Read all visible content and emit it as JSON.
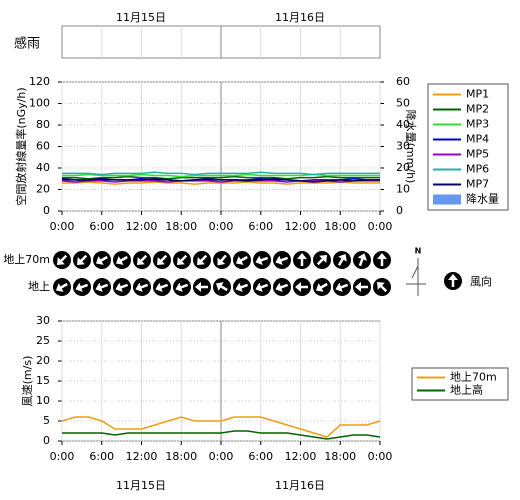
{
  "dates": [
    "11月15日",
    "11月16日"
  ],
  "rain_sense": {
    "label": "感雨"
  },
  "wind_direction": {
    "rows": [
      {
        "name": "地上70m",
        "values": [
          225,
          225,
          240,
          240,
          225,
          225,
          225,
          225,
          220,
          240,
          250,
          250,
          0,
          45,
          30,
          20,
          0
        ]
      },
      {
        "name": "地上",
        "values": [
          240,
          250,
          250,
          250,
          250,
          250,
          250,
          270,
          300,
          250,
          250,
          250,
          270,
          240,
          250,
          270,
          315
        ]
      }
    ],
    "north": "N",
    "legend": "風向"
  },
  "chart_data": [
    {
      "type": "line",
      "ylabel": "空間放射線量率(nGy/h)",
      "y2label": "降水量(mm/h)",
      "x": [
        0,
        2,
        4,
        6,
        8,
        10,
        12,
        14,
        16,
        18,
        20,
        22,
        24,
        26,
        28,
        30,
        32,
        34,
        36,
        38,
        40,
        42,
        44,
        46,
        48
      ],
      "xlim": [
        0,
        48
      ],
      "xticks": [
        {
          "value": 0,
          "label": "0:00"
        },
        {
          "value": 6,
          "label": "6:00"
        },
        {
          "value": 12,
          "label": "12:00"
        },
        {
          "value": 18,
          "label": "18:00"
        },
        {
          "value": 24,
          "label": "0:00"
        },
        {
          "value": 30,
          "label": "6:00"
        },
        {
          "value": 36,
          "label": "12:00"
        },
        {
          "value": 42,
          "label": "18:00"
        },
        {
          "value": 48,
          "label": "0:00"
        }
      ],
      "ylim": [
        0,
        120
      ],
      "yticks": [
        0,
        20,
        40,
        60,
        80,
        100,
        120
      ],
      "y2lim": [
        0,
        60
      ],
      "y2ticks": [
        0,
        10,
        20,
        30,
        40,
        50,
        60
      ],
      "grid": true,
      "series": [
        {
          "name": "MP1",
          "color": "#f39c12",
          "values": [
            26,
            26,
            27,
            26,
            25,
            26,
            26,
            27,
            26,
            26,
            25,
            26,
            26,
            26,
            27,
            26,
            26,
            25,
            26,
            26,
            26,
            27,
            26,
            26,
            26
          ]
        },
        {
          "name": "MP2",
          "color": "#006400",
          "values": [
            31,
            31,
            30,
            31,
            31,
            32,
            31,
            31,
            30,
            31,
            31,
            31,
            31,
            32,
            31,
            31,
            31,
            30,
            31,
            31,
            32,
            31,
            31,
            31,
            31
          ]
        },
        {
          "name": "MP3",
          "color": "#33dd33",
          "values": [
            33,
            33,
            34,
            33,
            33,
            33,
            34,
            33,
            33,
            32,
            33,
            33,
            33,
            33,
            34,
            33,
            33,
            33,
            33,
            34,
            33,
            33,
            33,
            33,
            33
          ]
        },
        {
          "name": "MP4",
          "color": "#0000cc",
          "values": [
            29,
            29,
            28,
            29,
            29,
            29,
            30,
            29,
            29,
            28,
            29,
            29,
            29,
            29,
            29,
            30,
            29,
            29,
            28,
            29,
            29,
            29,
            30,
            29,
            29
          ]
        },
        {
          "name": "MP5",
          "color": "#9900cc",
          "values": [
            28,
            27,
            28,
            28,
            27,
            28,
            28,
            28,
            27,
            28,
            28,
            28,
            27,
            28,
            28,
            28,
            28,
            27,
            28,
            28,
            28,
            27,
            28,
            28,
            28
          ]
        },
        {
          "name": "MP6",
          "color": "#20b2aa",
          "values": [
            35,
            35,
            35,
            34,
            35,
            35,
            35,
            36,
            35,
            35,
            34,
            35,
            35,
            35,
            35,
            36,
            35,
            35,
            35,
            34,
            35,
            35,
            35,
            35,
            35
          ]
        },
        {
          "name": "MP7",
          "color": "#000066",
          "values": [
            30,
            29,
            29,
            30,
            29,
            29,
            29,
            30,
            29,
            28,
            29,
            30,
            29,
            29,
            28,
            29,
            30,
            29,
            28,
            27,
            28,
            29,
            28,
            29,
            29
          ]
        },
        {
          "name": "降水量",
          "color": "#6699ee",
          "type": "bar",
          "axis": "y2",
          "values": [
            0,
            0,
            0,
            0,
            0,
            0,
            0,
            0,
            0,
            0,
            0,
            0,
            0,
            0,
            0,
            0,
            0,
            0,
            0,
            0,
            0,
            0,
            0,
            0,
            0
          ]
        }
      ]
    },
    {
      "type": "line",
      "ylabel": "風速(m/s)",
      "x": [
        0,
        2,
        4,
        6,
        8,
        10,
        12,
        14,
        16,
        18,
        20,
        22,
        24,
        26,
        28,
        30,
        32,
        34,
        36,
        38,
        40,
        42,
        44,
        46,
        48
      ],
      "xlim": [
        0,
        48
      ],
      "xticks": [
        {
          "value": 0,
          "label": "0:00"
        },
        {
          "value": 6,
          "label": "6:00"
        },
        {
          "value": 12,
          "label": "12:00"
        },
        {
          "value": 18,
          "label": "18:00"
        },
        {
          "value": 24,
          "label": "0:00"
        },
        {
          "value": 30,
          "label": "6:00"
        },
        {
          "value": 36,
          "label": "12:00"
        },
        {
          "value": 42,
          "label": "18:00"
        },
        {
          "value": 48,
          "label": "0:00"
        }
      ],
      "ylim": [
        0,
        30
      ],
      "yticks": [
        0,
        5,
        10,
        15,
        20,
        25,
        30
      ],
      "grid": true,
      "series": [
        {
          "name": "地上70m",
          "color": "#f39c12",
          "values": [
            5,
            6,
            6,
            5,
            3,
            3,
            3,
            4,
            5,
            6,
            5,
            5,
            5,
            6,
            6,
            6,
            5,
            4,
            3,
            2,
            1,
            4,
            4,
            4,
            5
          ]
        },
        {
          "name": "地上高",
          "color": "#006400",
          "values": [
            2,
            2,
            2,
            2,
            1.5,
            2,
            2,
            2,
            2,
            2,
            2,
            2,
            2,
            2.5,
            2.5,
            2,
            2,
            2,
            1.5,
            1,
            0.5,
            1,
            1.5,
            1.5,
            1
          ]
        }
      ]
    }
  ]
}
